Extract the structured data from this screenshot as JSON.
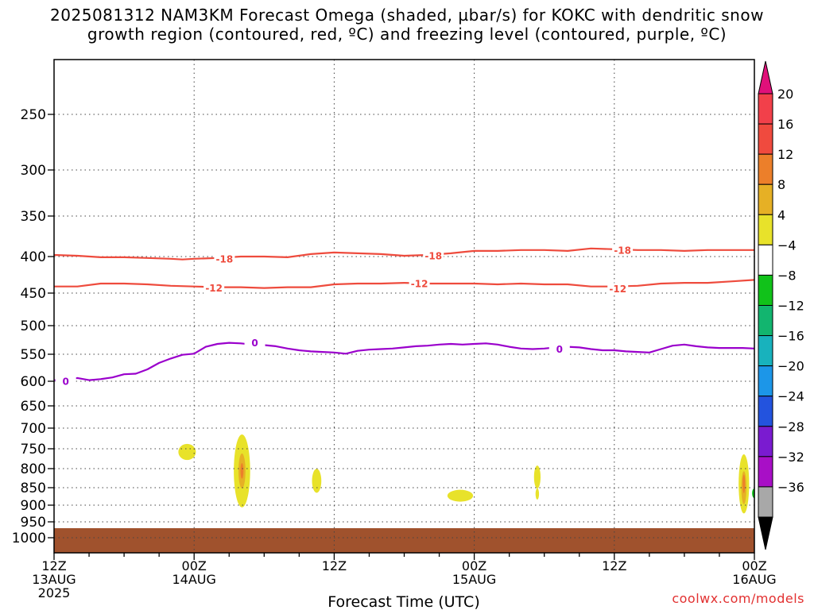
{
  "header": {
    "line1": "2025081312 NAM3KM Forecast Omega (shaded, µbar/s) for KOKC with dendritic snow",
    "line2": "growth region (contoured, red, ºC) and freezing level (contoured, purple, ºC)"
  },
  "credit": "coolwx.com/models",
  "chart_data": {
    "type": "time-height cross section",
    "title": "2025081312 NAM3KM Forecast Omega (shaded, µbar/s) for KOKC with dendritic snow growth region (contoured, red, ºC) and freezing level (contoured, purple, ºC)",
    "xlabel": "Forecast Time (UTC)",
    "ylabel": "",
    "xlim_hours": [
      0,
      60
    ],
    "ylim": [
      1050,
      200
    ],
    "y_ticks": [
      250,
      300,
      350,
      400,
      450,
      500,
      550,
      600,
      650,
      700,
      750,
      800,
      850,
      900,
      950,
      1000
    ],
    "x_ticks": [
      {
        "h": 0,
        "l1": "12Z",
        "l2": "13AUG",
        "l3": "2025"
      },
      {
        "h": 12,
        "l1": "00Z",
        "l2": "14AUG",
        "l3": ""
      },
      {
        "h": 24,
        "l1": "12Z",
        "l2": "",
        "l3": ""
      },
      {
        "h": 36,
        "l1": "00Z",
        "l2": "15AUG",
        "l3": ""
      },
      {
        "h": 48,
        "l1": "12Z",
        "l2": "",
        "l3": ""
      },
      {
        "h": 60,
        "l1": "00Z",
        "l2": "16AUG",
        "l3": ""
      }
    ],
    "grid": true,
    "contours": [
      {
        "name": "-18",
        "color": "#ee4b3d",
        "points": [
          [
            0,
            398
          ],
          [
            2,
            399
          ],
          [
            4,
            401
          ],
          [
            6,
            401
          ],
          [
            8,
            402
          ],
          [
            10,
            403
          ],
          [
            11,
            404
          ],
          [
            12,
            403
          ],
          [
            14,
            402
          ],
          [
            16,
            400
          ],
          [
            18,
            400
          ],
          [
            20,
            401
          ],
          [
            22,
            397
          ],
          [
            24,
            395
          ],
          [
            26,
            396
          ],
          [
            28,
            397
          ],
          [
            30,
            399
          ],
          [
            32,
            398
          ],
          [
            34,
            396
          ],
          [
            36,
            393
          ],
          [
            38,
            393
          ],
          [
            40,
            392
          ],
          [
            42,
            392
          ],
          [
            44,
            393
          ],
          [
            46,
            390
          ],
          [
            48,
            391
          ],
          [
            50,
            392
          ],
          [
            52,
            392
          ],
          [
            54,
            393
          ],
          [
            56,
            392
          ],
          [
            58,
            392
          ],
          [
            60,
            392
          ]
        ],
        "labels": [
          {
            "h": 14.6,
            "p": 403
          },
          {
            "h": 32.5,
            "p": 399
          },
          {
            "h": 48.7,
            "p": 392
          }
        ]
      },
      {
        "name": "-12",
        "color": "#ee4b3d",
        "points": [
          [
            0,
            441
          ],
          [
            2,
            441
          ],
          [
            4,
            437
          ],
          [
            6,
            437
          ],
          [
            8,
            438
          ],
          [
            10,
            440
          ],
          [
            12,
            441
          ],
          [
            14,
            442
          ],
          [
            16,
            442
          ],
          [
            18,
            443
          ],
          [
            20,
            442
          ],
          [
            22,
            442
          ],
          [
            24,
            438
          ],
          [
            26,
            437
          ],
          [
            28,
            437
          ],
          [
            30,
            436
          ],
          [
            32,
            437
          ],
          [
            34,
            437
          ],
          [
            36,
            437
          ],
          [
            38,
            438
          ],
          [
            40,
            437
          ],
          [
            42,
            438
          ],
          [
            44,
            438
          ],
          [
            46,
            441
          ],
          [
            48,
            441
          ],
          [
            50,
            440
          ],
          [
            52,
            437
          ],
          [
            54,
            436
          ],
          [
            56,
            436
          ],
          [
            58,
            434
          ],
          [
            60,
            432
          ]
        ],
        "labels": [
          {
            "h": 13.7,
            "p": 443
          },
          {
            "h": 31.3,
            "p": 437
          },
          {
            "h": 48.3,
            "p": 444
          }
        ]
      },
      {
        "name": "0",
        "color": "#9a00cc",
        "points": [
          [
            0,
            598
          ],
          [
            1,
            598
          ],
          [
            2,
            594
          ],
          [
            3,
            598
          ],
          [
            4,
            596
          ],
          [
            5,
            593
          ],
          [
            6,
            587
          ],
          [
            7,
            586
          ],
          [
            8,
            578
          ],
          [
            9,
            566
          ],
          [
            10,
            558
          ],
          [
            11,
            551
          ],
          [
            12,
            549
          ],
          [
            13,
            537
          ],
          [
            14,
            532
          ],
          [
            15,
            530
          ],
          [
            16,
            531
          ],
          [
            17,
            533
          ],
          [
            18,
            534
          ],
          [
            19,
            536
          ],
          [
            20,
            540
          ],
          [
            21,
            543
          ],
          [
            22,
            545
          ],
          [
            23,
            546
          ],
          [
            24,
            547
          ],
          [
            25,
            549
          ],
          [
            26,
            544
          ],
          [
            27,
            542
          ],
          [
            28,
            541
          ],
          [
            29,
            540
          ],
          [
            30,
            538
          ],
          [
            31,
            536
          ],
          [
            32,
            535
          ],
          [
            33,
            533
          ],
          [
            34,
            532
          ],
          [
            35,
            533
          ],
          [
            36,
            532
          ],
          [
            37,
            531
          ],
          [
            38,
            533
          ],
          [
            39,
            537
          ],
          [
            40,
            540
          ],
          [
            41,
            541
          ],
          [
            42,
            540
          ],
          [
            43,
            538
          ],
          [
            44,
            537
          ],
          [
            45,
            538
          ],
          [
            46,
            541
          ],
          [
            47,
            543
          ],
          [
            48,
            543
          ],
          [
            49,
            545
          ],
          [
            50,
            546
          ],
          [
            51,
            547
          ],
          [
            52,
            541
          ],
          [
            53,
            535
          ],
          [
            54,
            533
          ],
          [
            55,
            536
          ],
          [
            56,
            538
          ],
          [
            57,
            539
          ],
          [
            58,
            539
          ],
          [
            59,
            539
          ],
          [
            60,
            540
          ]
        ],
        "labels": [
          {
            "h": 1.0,
            "p": 600
          },
          {
            "h": 17.2,
            "p": 530
          },
          {
            "h": 43.3,
            "p": 541
          }
        ]
      }
    ],
    "omega_blobs": [
      {
        "h": 11.4,
        "p": 758,
        "rh": 0.75,
        "rp": 20,
        "level": 4
      },
      {
        "h": 16.1,
        "p": 806,
        "rh": 0.7,
        "rp": 95,
        "level": 4
      },
      {
        "h": 16.1,
        "p": 806,
        "rh": 0.3,
        "rp": 45,
        "level": 8
      },
      {
        "h": 16.1,
        "p": 806,
        "rh": 0.13,
        "rp": 20,
        "level": 12
      },
      {
        "h": 22.5,
        "p": 832,
        "rh": 0.4,
        "rp": 32,
        "level": 4
      },
      {
        "h": 34.8,
        "p": 873,
        "rh": 1.1,
        "rp": 17,
        "level": 4
      },
      {
        "h": 41.4,
        "p": 822,
        "rh": 0.28,
        "rp": 30,
        "level": 4
      },
      {
        "h": 41.4,
        "p": 868,
        "rh": 0.15,
        "rp": 16,
        "level": 4
      },
      {
        "h": 59.1,
        "p": 840,
        "rh": 0.45,
        "rp": 80,
        "level": 4
      },
      {
        "h": 59.1,
        "p": 850,
        "rh": 0.22,
        "rp": 45,
        "level": 8
      },
      {
        "h": 59.1,
        "p": 840,
        "rh": 0.1,
        "rp": 25,
        "level": 12
      }
    ],
    "omega_negative_blobs": [
      {
        "h": 60.0,
        "p": 866,
        "rh": 0.2,
        "rp": 14,
        "level": -4
      }
    ],
    "ground": {
      "color": "#a0522d",
      "p_top": 970
    },
    "colorbar": {
      "ticks": [
        "20",
        "16",
        "12",
        "8",
        "4",
        "−4",
        "−8",
        "−12",
        "−16",
        "−20",
        "−24",
        "−28",
        "−32",
        "−36"
      ],
      "top_triangle": "#e0107a",
      "bottom_triangle": "#000000",
      "segments": [
        "#f2404a",
        "#f04a3e",
        "#ec7f2a",
        "#e6b025",
        "#e8e22a",
        "#ffffff",
        "#11c21a",
        "#12b56f",
        "#18b2bd",
        "#1c96e8",
        "#2353de",
        "#7a1bd0",
        "#a80fc6",
        "#a8a8a8"
      ]
    }
  }
}
